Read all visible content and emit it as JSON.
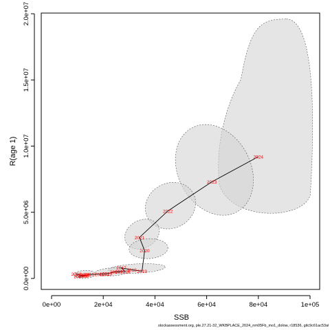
{
  "chart_data": {
    "type": "scatter",
    "xlabel": "SSB",
    "ylabel": "R(age 1)",
    "xlim": [
      0,
      100000
    ],
    "ylim": [
      0,
      20000000
    ],
    "x_ticks": [
      {
        "value": 0,
        "label": "0e+00"
      },
      {
        "value": 20000,
        "label": "2e+04"
      },
      {
        "value": 40000,
        "label": "4e+04"
      },
      {
        "value": 60000,
        "label": "6e+04"
      },
      {
        "value": 80000,
        "label": "8e+04"
      },
      {
        "value": 100000,
        "label": "1e+05"
      }
    ],
    "y_ticks": [
      {
        "value": 0,
        "label": "0.0e+00"
      },
      {
        "value": 5000000,
        "label": "5.0e+06"
      },
      {
        "value": 10000000,
        "label": "1.0e+07"
      },
      {
        "value": 15000000,
        "label": "1.5e+07"
      },
      {
        "value": 20000000,
        "label": "2.0e+07"
      }
    ],
    "points": [
      {
        "year": "2004",
        "ssb": 9500,
        "rec": 350000
      },
      {
        "year": "2005",
        "ssb": 11000,
        "rec": 250000
      },
      {
        "year": "2006",
        "ssb": 12500,
        "rec": 200000
      },
      {
        "year": "2007",
        "ssb": 10500,
        "rec": 150000
      },
      {
        "year": "2008",
        "ssb": 13000,
        "rec": 280000
      },
      {
        "year": "2009",
        "ssb": 12000,
        "rec": 180000
      },
      {
        "year": "2010",
        "ssb": 14500,
        "rec": 300000
      },
      {
        "year": "2011",
        "ssb": 18500,
        "rec": 320000
      },
      {
        "year": "2012",
        "ssb": 20500,
        "rec": 340000
      },
      {
        "year": "2013",
        "ssb": 21500,
        "rec": 360000
      },
      {
        "year": "2014",
        "ssb": 24500,
        "rec": 500000
      },
      {
        "year": "2015",
        "ssb": 26500,
        "rec": 520000
      },
      {
        "year": "2016",
        "ssb": 28500,
        "rec": 530000
      },
      {
        "year": "2017",
        "ssb": 27000,
        "rec": 800000
      },
      {
        "year": "2018",
        "ssb": 31000,
        "rec": 650000
      },
      {
        "year": "2019",
        "ssb": 35000,
        "rec": 550000
      },
      {
        "year": "2020",
        "ssb": 36000,
        "rec": 2100000
      },
      {
        "year": "2021",
        "ssb": 34000,
        "rec": 3100000
      },
      {
        "year": "2022",
        "ssb": 45000,
        "rec": 5100000
      },
      {
        "year": "2023",
        "ssb": 62000,
        "rec": 7300000
      },
      {
        "year": "2024",
        "ssb": 80000,
        "rec": 9200000
      }
    ],
    "ellipses": [
      {
        "year": "2024",
        "x_min": 64000,
        "x_max": 101000,
        "y_min": 4400000,
        "y_max": 19600000,
        "peak_y": 19600000
      },
      {
        "year": "2023",
        "x_min": 49000,
        "x_max": 77000,
        "y_min": 4600000,
        "y_max": 11800000
      },
      {
        "year": "2022",
        "x_min": 36000,
        "x_max": 56000,
        "y_min": 3800000,
        "y_max": 7200000
      },
      {
        "year": "2021",
        "x_min": 28000,
        "x_max": 42000,
        "y_min": 2300000,
        "y_max": 4400000
      },
      {
        "year": "2020",
        "x_min": 30000,
        "x_max": 45000,
        "y_min": 1500000,
        "y_max": 3000000
      },
      {
        "year": "2019",
        "x_min": 22000,
        "x_max": 44000,
        "y_min": 400000,
        "y_max": 1100000
      },
      {
        "year": "2014",
        "x_min": 17000,
        "x_max": 30000,
        "y_min": 200000,
        "y_max": 800000
      },
      {
        "year": "2008",
        "x_min": 8500,
        "x_max": 17000,
        "y_min": 0,
        "y_max": 600000
      }
    ],
    "grid": false
  },
  "footer_text": "stockassessment.org, ple.27.21-32_WKBPLACE_2024_nm05Fb_mo1_dolow, r18536, gitc9c61ac53a0d"
}
